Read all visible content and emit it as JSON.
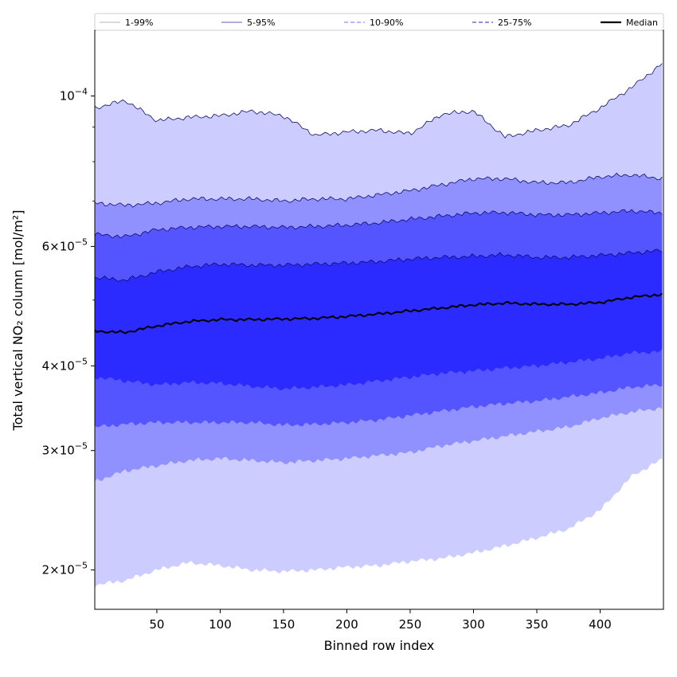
{
  "chart_data": {
    "type": "area",
    "title": "",
    "xlabel": "Binned row index",
    "ylabel": "Total vertical NO₂ column [mol/m²]",
    "yscale": "log",
    "xlim": [
      1,
      450
    ],
    "ylim": [
      1.75e-05,
      0.000125
    ],
    "x_ticks": [
      50,
      100,
      150,
      200,
      250,
      300,
      350,
      400
    ],
    "x_tick_labels": [
      "50",
      "100",
      "150",
      "200",
      "250",
      "300",
      "350",
      "400"
    ],
    "y_tick_values": [
      2e-05,
      3e-05,
      4e-05,
      6e-05,
      0.0001
    ],
    "y_tick_labels": [
      {
        "mant": "2",
        "exp": "−5"
      },
      {
        "mant": "3",
        "exp": "−5"
      },
      {
        "mant": "4",
        "exp": "−5"
      },
      {
        "mant": "6",
        "exp": "−5"
      },
      {
        "mant": "",
        "exp": "−4"
      }
    ],
    "x": [
      1,
      25,
      50,
      75,
      100,
      125,
      150,
      175,
      200,
      225,
      250,
      275,
      300,
      325,
      350,
      375,
      400,
      425,
      450
    ],
    "bands": [
      {
        "name": "1-99%",
        "color": "#ccccff",
        "line_color": "#b0b0d0",
        "line_style": "solid",
        "upper": [
          9.6e-05,
          9.85e-05,
          9.2e-05,
          9.3e-05,
          9.35e-05,
          9.5e-05,
          9.35e-05,
          8.75e-05,
          8.85e-05,
          8.9e-05,
          8.8e-05,
          9.4e-05,
          9.5e-05,
          8.7e-05,
          8.9e-05,
          9.05e-05,
          9.6e-05,
          0.000103,
          0.000112
        ],
        "lower": [
          1.9e-05,
          1.93e-05,
          2e-05,
          2.05e-05,
          2.03e-05,
          2e-05,
          1.99e-05,
          2e-05,
          2.02e-05,
          2.03e-05,
          2.06e-05,
          2.08e-05,
          2.12e-05,
          2.17e-05,
          2.23e-05,
          2.3e-05,
          2.45e-05,
          2.75e-05,
          2.92e-05
        ]
      },
      {
        "name": "5-95%",
        "color": "#9090ff",
        "line_color": "#6060c0",
        "line_style": "solid",
        "upper": [
          6.95e-05,
          6.9e-05,
          6.95e-05,
          7.05e-05,
          7.05e-05,
          7.05e-05,
          7e-05,
          7.05e-05,
          7.05e-05,
          7.15e-05,
          7.25e-05,
          7.4e-05,
          7.55e-05,
          7.55e-05,
          7.45e-05,
          7.45e-05,
          7.6e-05,
          7.65e-05,
          7.55e-05
        ],
        "lower": [
          2.7e-05,
          2.8e-05,
          2.85e-05,
          2.9e-05,
          2.92e-05,
          2.9e-05,
          2.88e-05,
          2.9e-05,
          2.92e-05,
          2.95e-05,
          2.98e-05,
          3.05e-05,
          3.1e-05,
          3.15e-05,
          3.2e-05,
          3.25e-05,
          3.35e-05,
          3.42e-05,
          3.47e-05
        ]
      },
      {
        "name": "10-90%",
        "color": "#5555ff",
        "line_color": "#7070ff",
        "line_style": "dashed",
        "upper": [
          6.25e-05,
          6.2e-05,
          6.35e-05,
          6.4e-05,
          6.42e-05,
          6.42e-05,
          6.4e-05,
          6.42e-05,
          6.45e-05,
          6.5e-05,
          6.58e-05,
          6.65e-05,
          6.72e-05,
          6.73e-05,
          6.68e-05,
          6.68e-05,
          6.72e-05,
          6.77e-05,
          6.72e-05
        ],
        "lower": [
          3.25e-05,
          3.28e-05,
          3.3e-05,
          3.3e-05,
          3.3e-05,
          3.3e-05,
          3.27e-05,
          3.28e-05,
          3.3e-05,
          3.33e-05,
          3.38e-05,
          3.43e-05,
          3.48e-05,
          3.52e-05,
          3.55e-05,
          3.6e-05,
          3.65e-05,
          3.72e-05,
          3.75e-05
        ]
      },
      {
        "name": "25-75%",
        "color": "#2b2bff",
        "line_color": "#2020c0",
        "line_style": "dashed",
        "upper": [
          5.4e-05,
          5.35e-05,
          5.5e-05,
          5.6e-05,
          5.65e-05,
          5.63e-05,
          5.63e-05,
          5.65e-05,
          5.67e-05,
          5.7e-05,
          5.75e-05,
          5.78e-05,
          5.8e-05,
          5.83e-05,
          5.78e-05,
          5.78e-05,
          5.82e-05,
          5.87e-05,
          5.92e-05
        ],
        "lower": [
          3.85e-05,
          3.8e-05,
          3.75e-05,
          3.78e-05,
          3.77e-05,
          3.73e-05,
          3.7e-05,
          3.72e-05,
          3.75e-05,
          3.8e-05,
          3.85e-05,
          3.9e-05,
          3.93e-05,
          3.97e-05,
          4e-05,
          4.05e-05,
          4.1e-05,
          4.18e-05,
          4.2e-05
        ]
      }
    ],
    "median": {
      "name": "Median",
      "color": "#000000",
      "values": [
        4.5e-05,
        4.48e-05,
        4.58e-05,
        4.65e-05,
        4.68e-05,
        4.68e-05,
        4.69e-05,
        4.7e-05,
        4.73e-05,
        4.77e-05,
        4.82e-05,
        4.87e-05,
        4.92e-05,
        4.95e-05,
        4.93e-05,
        4.93e-05,
        4.96e-05,
        5.05e-05,
        5.1e-05
      ]
    },
    "legend": {
      "placement": "top, spanning full width",
      "entries": [
        "1-99%",
        "5-95%",
        "10-90%",
        "25-75%",
        "Median"
      ]
    }
  }
}
